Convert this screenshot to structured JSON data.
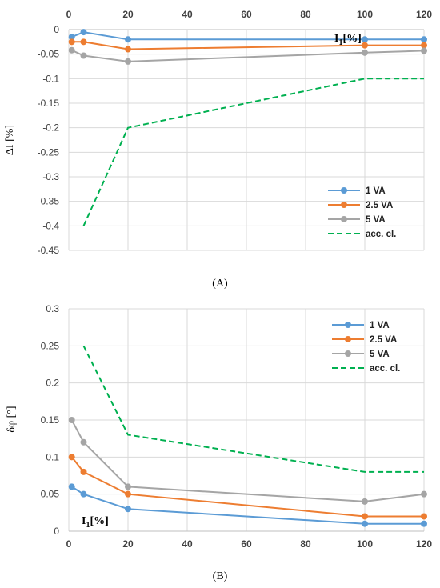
{
  "chart_data": [
    {
      "type": "line",
      "panel_label": "(A)",
      "x": [
        1,
        5,
        20,
        100,
        120
      ],
      "xlim": [
        0,
        120
      ],
      "xticks": [
        "0",
        "20",
        "40",
        "60",
        "80",
        "100",
        "120"
      ],
      "xlabel": "I₁[%]",
      "x_axis_position": "top",
      "ylabel": "ΔI [%]",
      "ylim": [
        -0.45,
        0
      ],
      "yticks": [
        "0",
        "-0.05",
        "-0.1",
        "-0.15",
        "-0.2",
        "-0.25",
        "-0.3",
        "-0.35",
        "-0.4",
        "-0.45"
      ],
      "grid": true,
      "legend_position": "bottom-right",
      "series": [
        {
          "name": "1 VA",
          "color": "#5b9bd5",
          "style": "solid-marker",
          "x": [
            1,
            5,
            20,
            100,
            120
          ],
          "values": [
            -0.015,
            -0.005,
            -0.02,
            -0.02,
            -0.02
          ]
        },
        {
          "name": "2.5 VA",
          "color": "#ed7d31",
          "style": "solid-marker",
          "x": [
            1,
            5,
            20,
            100,
            120
          ],
          "values": [
            -0.025,
            -0.025,
            -0.04,
            -0.032,
            -0.032
          ]
        },
        {
          "name": "5 VA",
          "color": "#a5a5a5",
          "style": "solid-marker",
          "x": [
            1,
            5,
            20,
            100,
            120
          ],
          "values": [
            -0.042,
            -0.053,
            -0.065,
            -0.047,
            -0.043
          ]
        },
        {
          "name": "acc. cl.",
          "color": "#00b050",
          "style": "dashed",
          "x": [
            5,
            20,
            100,
            120
          ],
          "values": [
            -0.4,
            -0.2,
            -0.1,
            -0.1
          ]
        }
      ]
    },
    {
      "type": "line",
      "panel_label": "(B)",
      "x": [
        1,
        5,
        20,
        100,
        120
      ],
      "xlim": [
        0,
        120
      ],
      "xticks": [
        "0",
        "20",
        "40",
        "60",
        "80",
        "100",
        "120"
      ],
      "xlabel": "I₁[%]",
      "x_axis_position": "bottom",
      "ylabel": "δφ [°]",
      "ylim": [
        0,
        0.3
      ],
      "yticks": [
        "0",
        "0.05",
        "0.1",
        "0.15",
        "0.2",
        "0.25",
        "0.3"
      ],
      "grid": true,
      "legend_position": "top-right",
      "series": [
        {
          "name": "1 VA",
          "color": "#5b9bd5",
          "style": "solid-marker",
          "x": [
            1,
            5,
            20,
            100,
            120
          ],
          "values": [
            0.06,
            0.05,
            0.03,
            0.01,
            0.01
          ]
        },
        {
          "name": "2.5 VA",
          "color": "#ed7d31",
          "style": "solid-marker",
          "x": [
            1,
            5,
            20,
            100,
            120
          ],
          "values": [
            0.1,
            0.08,
            0.05,
            0.02,
            0.02
          ]
        },
        {
          "name": "5 VA",
          "color": "#a5a5a5",
          "style": "solid-marker",
          "x": [
            1,
            5,
            20,
            100,
            120
          ],
          "values": [
            0.15,
            0.12,
            0.06,
            0.04,
            0.05
          ]
        },
        {
          "name": "acc. cl.",
          "color": "#00b050",
          "style": "dashed",
          "x": [
            5,
            20,
            100,
            120
          ],
          "values": [
            0.25,
            0.13,
            0.08,
            0.08
          ]
        }
      ]
    }
  ]
}
